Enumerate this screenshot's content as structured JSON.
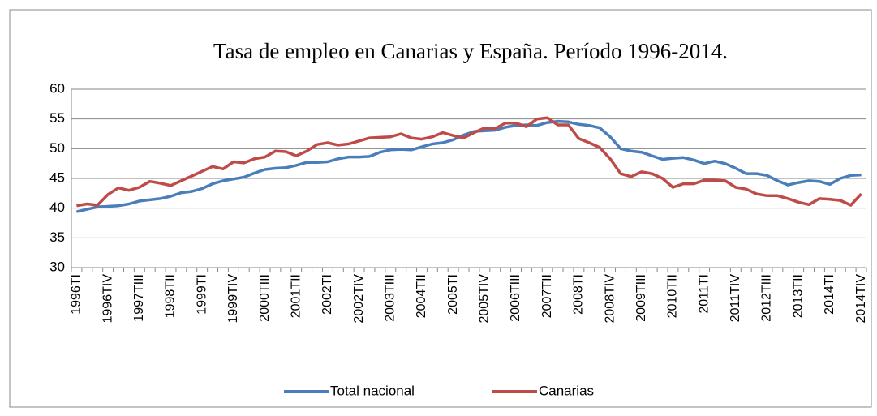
{
  "chart_data": {
    "type": "line",
    "title": "Tasa de empleo en Canarias y España. Período  1996-2014.",
    "categories": [
      "1996TI",
      null,
      null,
      "1996TIV",
      null,
      null,
      "1997TIII",
      null,
      null,
      "1998TII",
      null,
      null,
      "1999TI",
      null,
      null,
      "1999TIV",
      null,
      null,
      "2000TIII",
      null,
      null,
      "2001TII",
      null,
      null,
      "2002TI",
      null,
      null,
      "2002TIV",
      null,
      null,
      "2003TIII",
      null,
      null,
      "2004TII",
      null,
      null,
      "2005TI",
      null,
      null,
      "2005TIV",
      null,
      null,
      "2006TIII",
      null,
      null,
      "2007TII",
      null,
      null,
      "2008TI",
      null,
      null,
      "2008TIV",
      null,
      null,
      "2009TIII",
      null,
      null,
      "2010TII",
      null,
      null,
      "2011TI",
      null,
      null,
      "2011TIV",
      null,
      null,
      "2012TIII",
      null,
      null,
      "2013TII",
      null,
      null,
      "2014TI",
      null,
      null,
      "2014TIV"
    ],
    "series": [
      {
        "name": "Total nacional",
        "color": "#4a7ebb",
        "values": [
          39.4,
          39.8,
          40.2,
          40.3,
          40.4,
          40.7,
          41.2,
          41.4,
          41.6,
          42.0,
          42.6,
          42.8,
          43.3,
          44.1,
          44.6,
          44.9,
          45.2,
          45.9,
          46.5,
          46.7,
          46.8,
          47.2,
          47.7,
          47.7,
          47.8,
          48.3,
          48.6,
          48.6,
          48.7,
          49.4,
          49.8,
          49.9,
          49.8,
          50.3,
          50.8,
          51.0,
          51.5,
          52.3,
          52.9,
          53.0,
          53.1,
          53.6,
          53.9,
          54.0,
          53.9,
          54.4,
          54.6,
          54.5,
          54.1,
          53.9,
          53.5,
          52.0,
          50.0,
          49.6,
          49.4,
          48.8,
          48.2,
          48.4,
          48.5,
          48.1,
          47.5,
          47.9,
          47.5,
          46.7,
          45.8,
          45.8,
          45.5,
          44.6,
          43.9,
          44.3,
          44.6,
          44.5,
          44.0,
          45.0,
          45.5,
          45.6
        ]
      },
      {
        "name": "Canarias",
        "color": "#be4b48",
        "values": [
          40.4,
          40.7,
          40.5,
          42.3,
          43.4,
          43.0,
          43.5,
          44.5,
          44.2,
          43.8,
          44.6,
          45.4,
          46.2,
          47.0,
          46.6,
          47.8,
          47.6,
          48.3,
          48.6,
          49.6,
          49.5,
          48.8,
          49.6,
          50.7,
          51.0,
          50.6,
          50.8,
          51.3,
          51.8,
          51.9,
          52.0,
          52.5,
          51.8,
          51.6,
          52.0,
          52.7,
          52.2,
          51.8,
          52.7,
          53.5,
          53.4,
          54.3,
          54.3,
          53.7,
          55.0,
          55.2,
          54.0,
          54.0,
          51.7,
          51.0,
          50.2,
          48.3,
          45.8,
          45.3,
          46.1,
          45.8,
          45.0,
          43.5,
          44.1,
          44.1,
          44.7,
          44.7,
          44.6,
          43.5,
          43.2,
          42.4,
          42.1,
          42.1,
          41.6,
          41.0,
          40.6,
          41.6,
          41.5,
          41.3,
          40.5,
          42.4
        ]
      }
    ],
    "ylim": [
      30,
      60
    ],
    "yticks": [
      30,
      35,
      40,
      45,
      50,
      55,
      60
    ],
    "grid": true,
    "legend": "bottom"
  }
}
